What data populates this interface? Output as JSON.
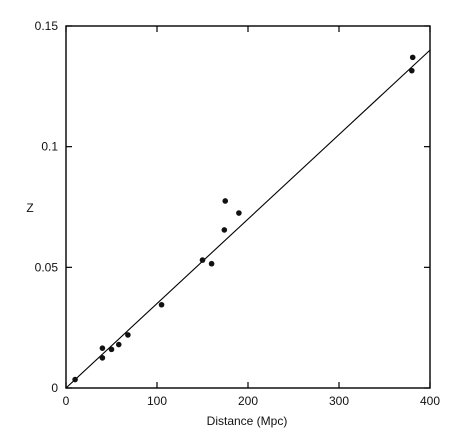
{
  "chart_data": {
    "type": "scatter",
    "title": "",
    "xlabel": "Distance  (Mpc)",
    "ylabel": "Z",
    "xlim": [
      0,
      400
    ],
    "ylim": [
      0,
      0.15
    ],
    "x_ticks": [
      0,
      100,
      200,
      300,
      400
    ],
    "x_tick_labels": [
      "0",
      "100",
      "200",
      "300",
      "400"
    ],
    "y_ticks": [
      0,
      0.05,
      0.1,
      0.15
    ],
    "y_tick_labels": [
      "0",
      "0.05",
      "0.1",
      "0.15"
    ],
    "grid": false,
    "points": [
      {
        "x": 10,
        "y": 0.0035
      },
      {
        "x": 40,
        "y": 0.0125
      },
      {
        "x": 40,
        "y": 0.0165
      },
      {
        "x": 50,
        "y": 0.016
      },
      {
        "x": 58,
        "y": 0.018
      },
      {
        "x": 68,
        "y": 0.022
      },
      {
        "x": 105,
        "y": 0.0345
      },
      {
        "x": 150,
        "y": 0.053
      },
      {
        "x": 160,
        "y": 0.0515
      },
      {
        "x": 174,
        "y": 0.0655
      },
      {
        "x": 175,
        "y": 0.0775
      },
      {
        "x": 190,
        "y": 0.0725
      },
      {
        "x": 380,
        "y": 0.1315
      },
      {
        "x": 381,
        "y": 0.137
      }
    ],
    "fit_line": {
      "x": [
        0,
        400
      ],
      "y": [
        0,
        0.14
      ]
    }
  }
}
